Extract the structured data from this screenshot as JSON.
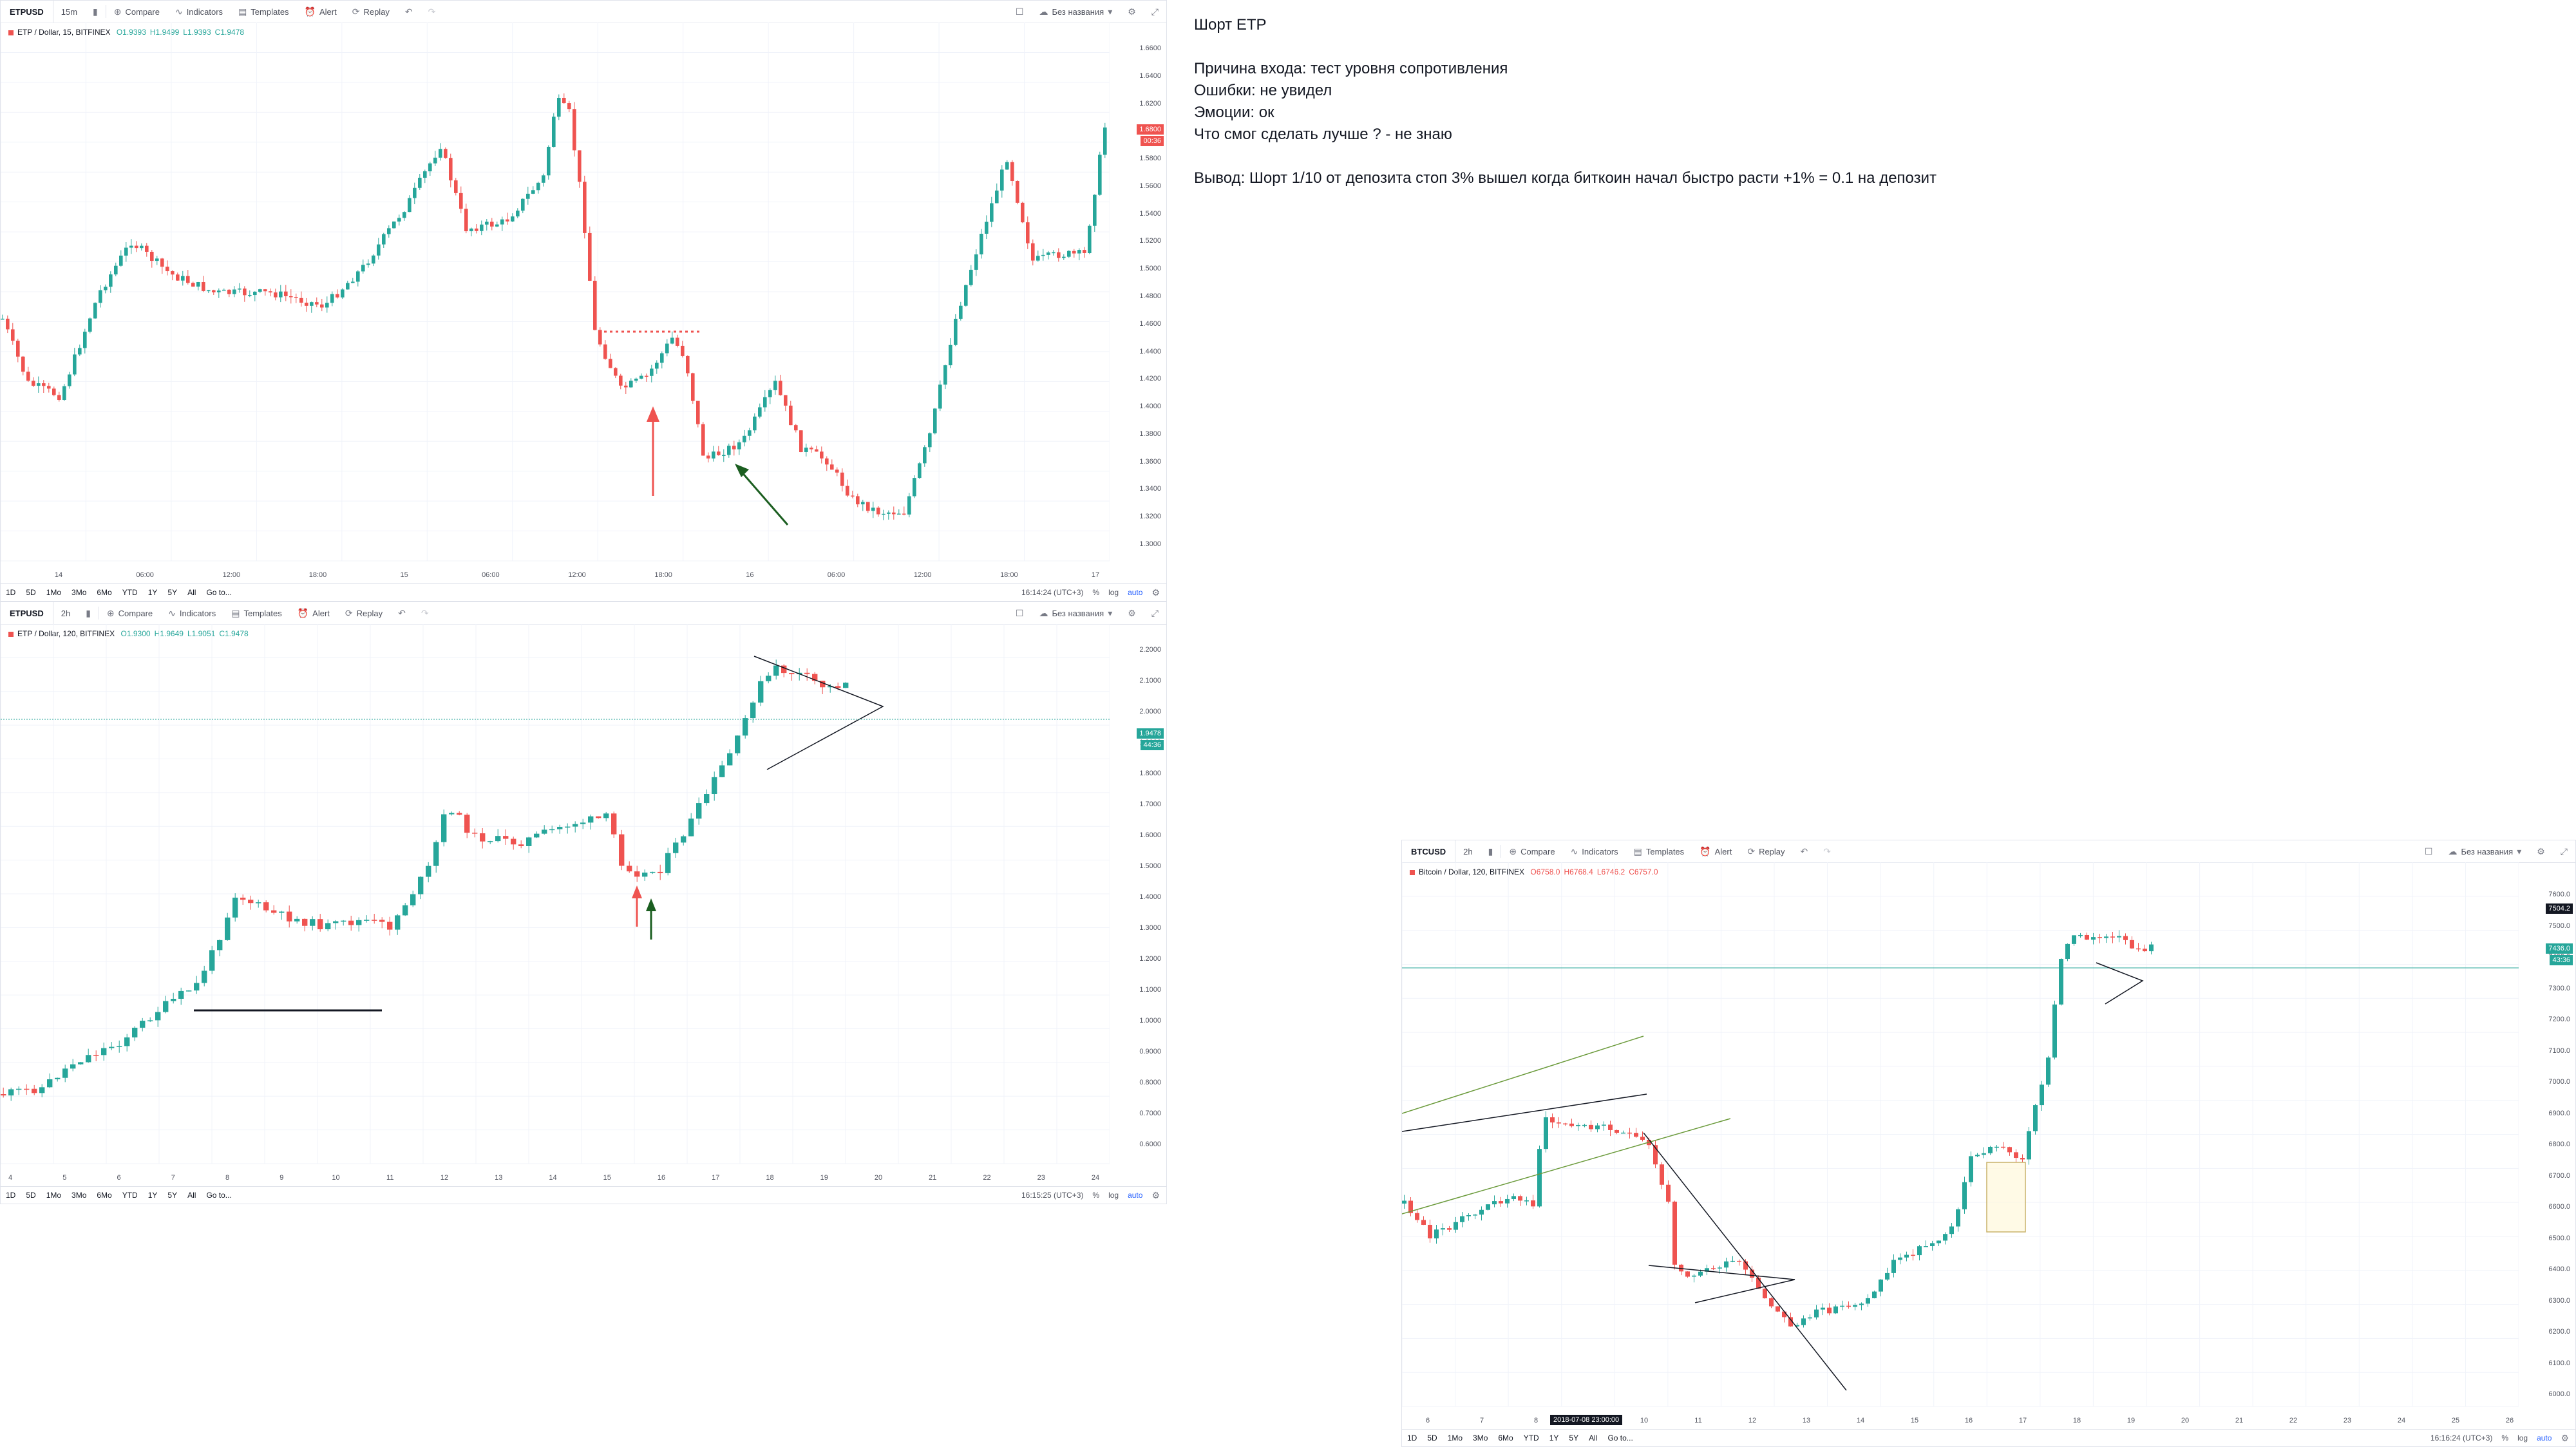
{
  "note": {
    "title": "Шорт ETP",
    "lines": [
      "Причина входа: тест уровня сопротивления",
      "Ошибки: не увидел",
      "Эмоции: ок",
      "Что смог сделать лучше ? - не знаю",
      "Вывод: Шорт 1/10 от депозита стоп 3% вышел когда биткоин начал быстро расти +1% = 0.1 на депозит"
    ]
  },
  "toolbar_labels": {
    "compare": "Compare",
    "indicators": "Indicators",
    "templates": "Templates",
    "alert": "Alert",
    "replay": "Replay",
    "layout": "Без названия"
  },
  "range_buttons": [
    "1D",
    "5D",
    "1Mo",
    "3Mo",
    "6Mo",
    "YTD",
    "1Y",
    "5Y",
    "All"
  ],
  "goto": "Go to...",
  "scale": {
    "pct": "%",
    "log": "log",
    "auto": "auto"
  },
  "charts": [
    {
      "id": "etp15",
      "symbol": "ETPUSD",
      "interval": "15m",
      "legend_title": "ETP / Dollar, 15, BITFINEX",
      "ohlc": {
        "o": "O1.9393",
        "h": "H1.9499",
        "l": "L1.9393",
        "c": "C1.9478"
      },
      "time": "16:14:24 (UTC+3)",
      "price_tags": [
        "1.6800",
        "00:36"
      ],
      "y_ticks": [
        "1.6600",
        "1.6400",
        "1.6200",
        "1.6000",
        "1.5800",
        "1.5600",
        "1.5400",
        "1.5200",
        "1.5000",
        "1.4800",
        "1.4600",
        "1.4400",
        "1.4200",
        "1.4000",
        "1.3800",
        "1.3600",
        "1.3400",
        "1.3200",
        "1.3000"
      ],
      "x_ticks": [
        "14",
        "06:00",
        "12:00",
        "18:00",
        "15",
        "06:00",
        "12:00",
        "18:00",
        "16",
        "06:00",
        "12:00",
        "18:00",
        "17"
      ]
    },
    {
      "id": "etp120",
      "symbol": "ETPUSD",
      "interval": "2h",
      "legend_title": "ETP / Dollar, 120, BITFINEX",
      "ohlc": {
        "o": "O1.9300",
        "h": "H1.9649",
        "l": "L1.9051",
        "c": "C1.9478"
      },
      "time": "16:15:25 (UTC+3)",
      "price_tags": [
        "1.9478",
        "44:36"
      ],
      "y_ticks": [
        "2.2000",
        "2.1000",
        "2.0000",
        "1.9000",
        "1.8000",
        "1.7000",
        "1.6000",
        "1.5000",
        "1.4000",
        "1.3000",
        "1.2000",
        "1.1000",
        "1.0000",
        "0.9000",
        "0.8000",
        "0.7000",
        "0.6000"
      ],
      "x_ticks": [
        "4",
        "5",
        "6",
        "7",
        "8",
        "9",
        "10",
        "11",
        "12",
        "13",
        "14",
        "15",
        "16",
        "17",
        "18",
        "19",
        "20",
        "21",
        "22",
        "23",
        "24"
      ]
    },
    {
      "id": "btc120",
      "symbol": "BTCUSD",
      "interval": "2h",
      "legend_title": "Bitcoin / Dollar, 120, BITFINEX",
      "ohlc": {
        "o": "O6758.0",
        "h": "H6768.4",
        "l": "L6746.2",
        "c": "C6757.0"
      },
      "time": "16:16:24 (UTC+3)",
      "price_tags": [
        "7504.2",
        "7436.0",
        "43:36"
      ],
      "crosshair_date": "2018-07-08 23:00:00",
      "y_ticks": [
        "7600.0",
        "7500.0",
        "7400.0",
        "7300.0",
        "7200.0",
        "7100.0",
        "7000.0",
        "6900.0",
        "6800.0",
        "6700.0",
        "6600.0",
        "6500.0",
        "6400.0",
        "6300.0",
        "6200.0",
        "6100.0",
        "6000.0"
      ],
      "x_ticks": [
        "6",
        "7",
        "8",
        "9",
        "10",
        "11",
        "12",
        "13",
        "14",
        "15",
        "16",
        "17",
        "18",
        "19",
        "20",
        "21",
        "22",
        "23",
        "24",
        "25",
        "26"
      ]
    }
  ],
  "colors": {
    "up": "#26a69a",
    "down": "#ef5350",
    "accent": "#2962ff"
  }
}
